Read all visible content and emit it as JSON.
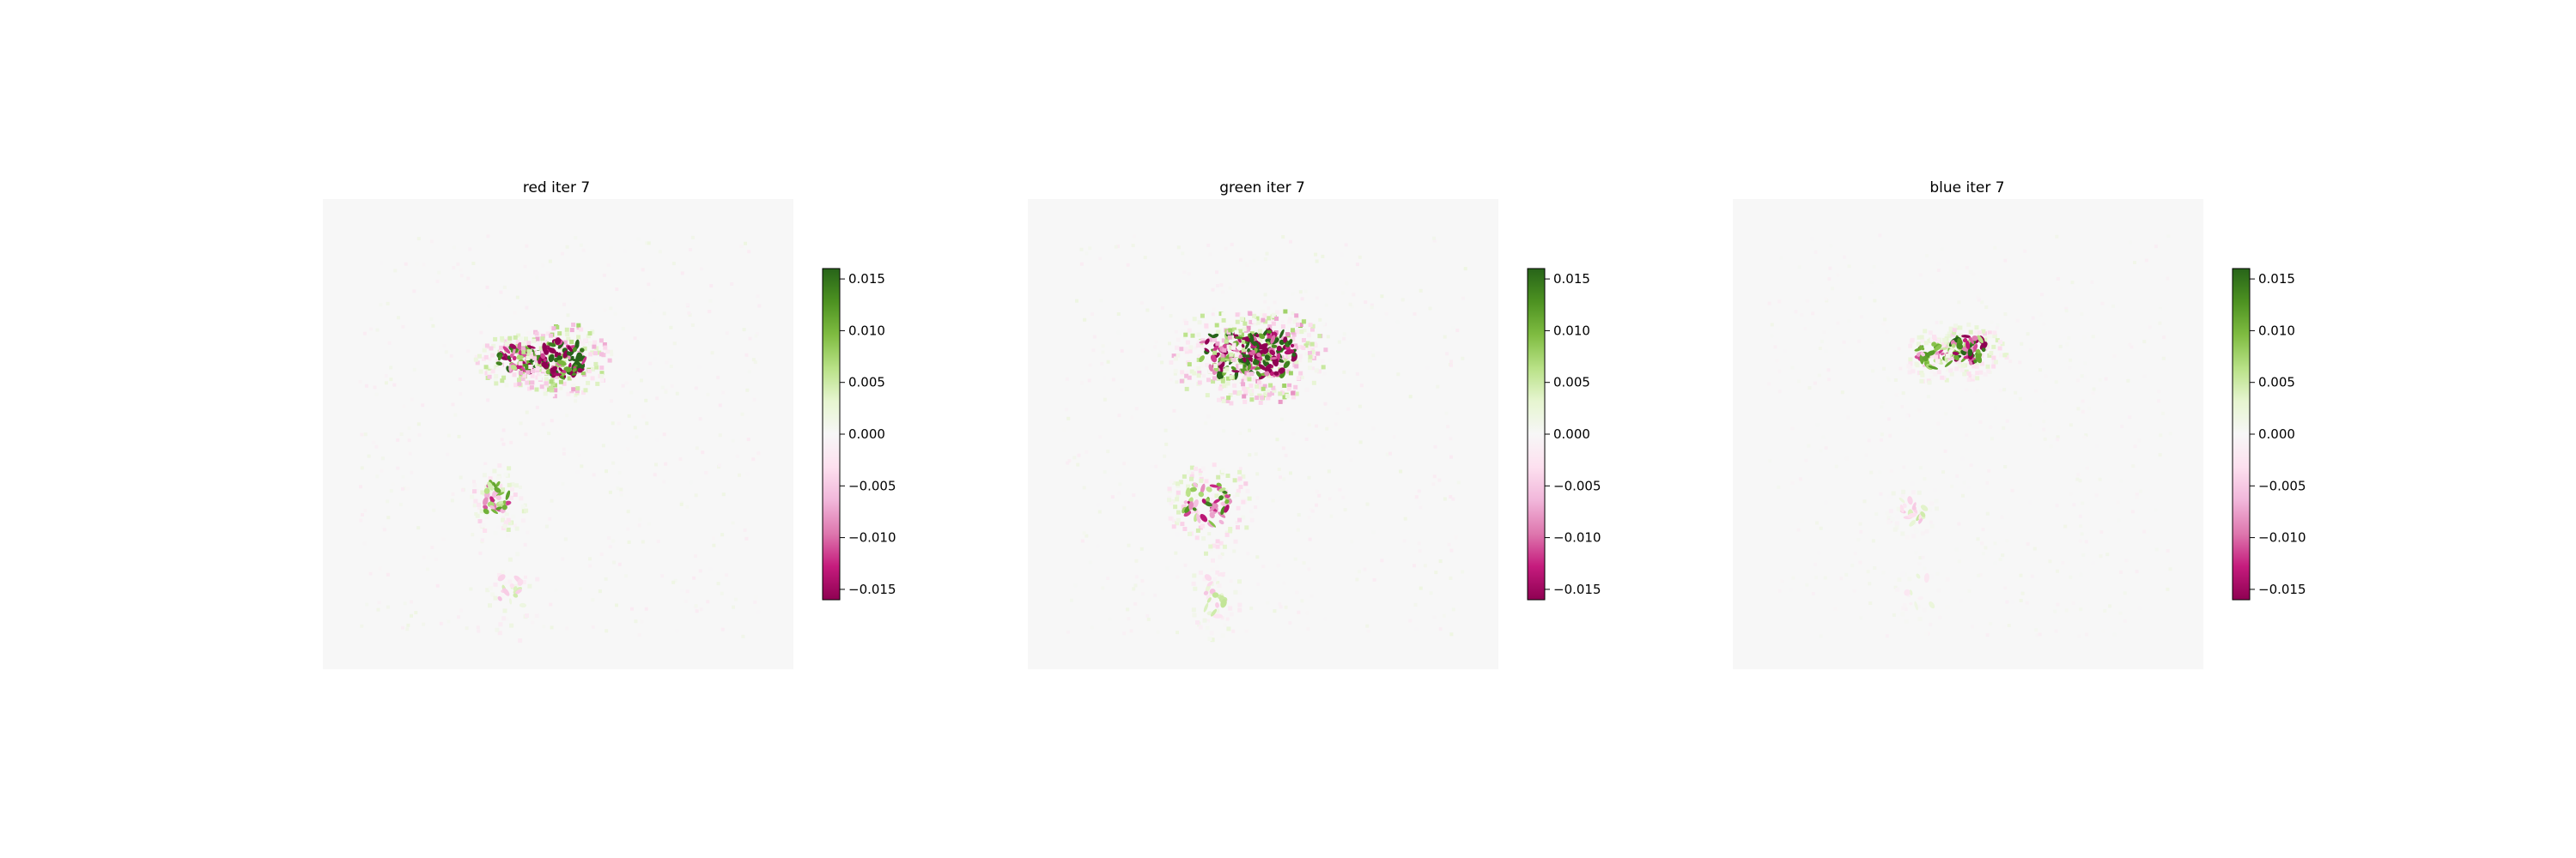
{
  "chart_data": [
    {
      "type": "heatmap",
      "title": "red iter 7",
      "colormap": "PiYG",
      "colorbar": {
        "ticks": [
          0.015,
          0.01,
          0.005,
          0.0,
          -0.005,
          -0.01,
          -0.015
        ],
        "tick_labels": [
          "0.015",
          "0.010",
          "0.005",
          "0.000",
          "−0.005",
          "−0.010",
          "−0.015"
        ],
        "vmin": -0.016,
        "vmax": 0.016
      },
      "axes_visible": false,
      "intensity": 1.0,
      "blobs": [
        {
          "cx": 0.42,
          "cy": 0.34,
          "rx": 0.05,
          "ry": 0.03,
          "amp": 1.0,
          "count": 70
        },
        {
          "cx": 0.51,
          "cy": 0.34,
          "rx": 0.05,
          "ry": 0.04,
          "amp": 1.3,
          "count": 90
        },
        {
          "cx": 0.37,
          "cy": 0.64,
          "rx": 0.03,
          "ry": 0.04,
          "amp": 0.7,
          "count": 35
        },
        {
          "cx": 0.4,
          "cy": 0.84,
          "rx": 0.03,
          "ry": 0.05,
          "amp": 0.3,
          "count": 15
        }
      ]
    },
    {
      "type": "heatmap",
      "title": "green iter 7",
      "colormap": "PiYG",
      "colorbar": {
        "ticks": [
          0.015,
          0.01,
          0.005,
          0.0,
          -0.005,
          -0.01,
          -0.015
        ],
        "tick_labels": [
          "0.015",
          "0.010",
          "0.005",
          "0.000",
          "−0.005",
          "−0.010",
          "−0.015"
        ],
        "vmin": -0.016,
        "vmax": 0.016
      },
      "axes_visible": false,
      "intensity": 1.0,
      "blobs": [
        {
          "cx": 0.43,
          "cy": 0.33,
          "rx": 0.07,
          "ry": 0.05,
          "amp": 1.1,
          "count": 90
        },
        {
          "cx": 0.51,
          "cy": 0.33,
          "rx": 0.06,
          "ry": 0.05,
          "amp": 1.4,
          "count": 110
        },
        {
          "cx": 0.38,
          "cy": 0.65,
          "rx": 0.05,
          "ry": 0.05,
          "amp": 0.8,
          "count": 50
        },
        {
          "cx": 0.4,
          "cy": 0.84,
          "rx": 0.03,
          "ry": 0.05,
          "amp": 0.35,
          "count": 20
        }
      ]
    },
    {
      "type": "heatmap",
      "title": "blue iter 7",
      "colormap": "PiYG",
      "colorbar": {
        "ticks": [
          0.015,
          0.01,
          0.005,
          0.0,
          -0.005,
          -0.01,
          -0.015
        ],
        "tick_labels": [
          "0.015",
          "0.010",
          "0.005",
          "0.000",
          "−0.005",
          "−0.010",
          "−0.015"
        ],
        "vmin": -0.016,
        "vmax": 0.016
      },
      "axes_visible": false,
      "intensity": 0.7,
      "blobs": [
        {
          "cx": 0.43,
          "cy": 0.33,
          "rx": 0.04,
          "ry": 0.03,
          "amp": 0.7,
          "count": 45
        },
        {
          "cx": 0.5,
          "cy": 0.32,
          "rx": 0.04,
          "ry": 0.03,
          "amp": 1.0,
          "count": 55
        },
        {
          "cx": 0.38,
          "cy": 0.66,
          "rx": 0.03,
          "ry": 0.03,
          "amp": 0.3,
          "count": 18
        },
        {
          "cx": 0.4,
          "cy": 0.84,
          "rx": 0.03,
          "ry": 0.04,
          "amp": 0.15,
          "count": 8
        }
      ]
    }
  ]
}
